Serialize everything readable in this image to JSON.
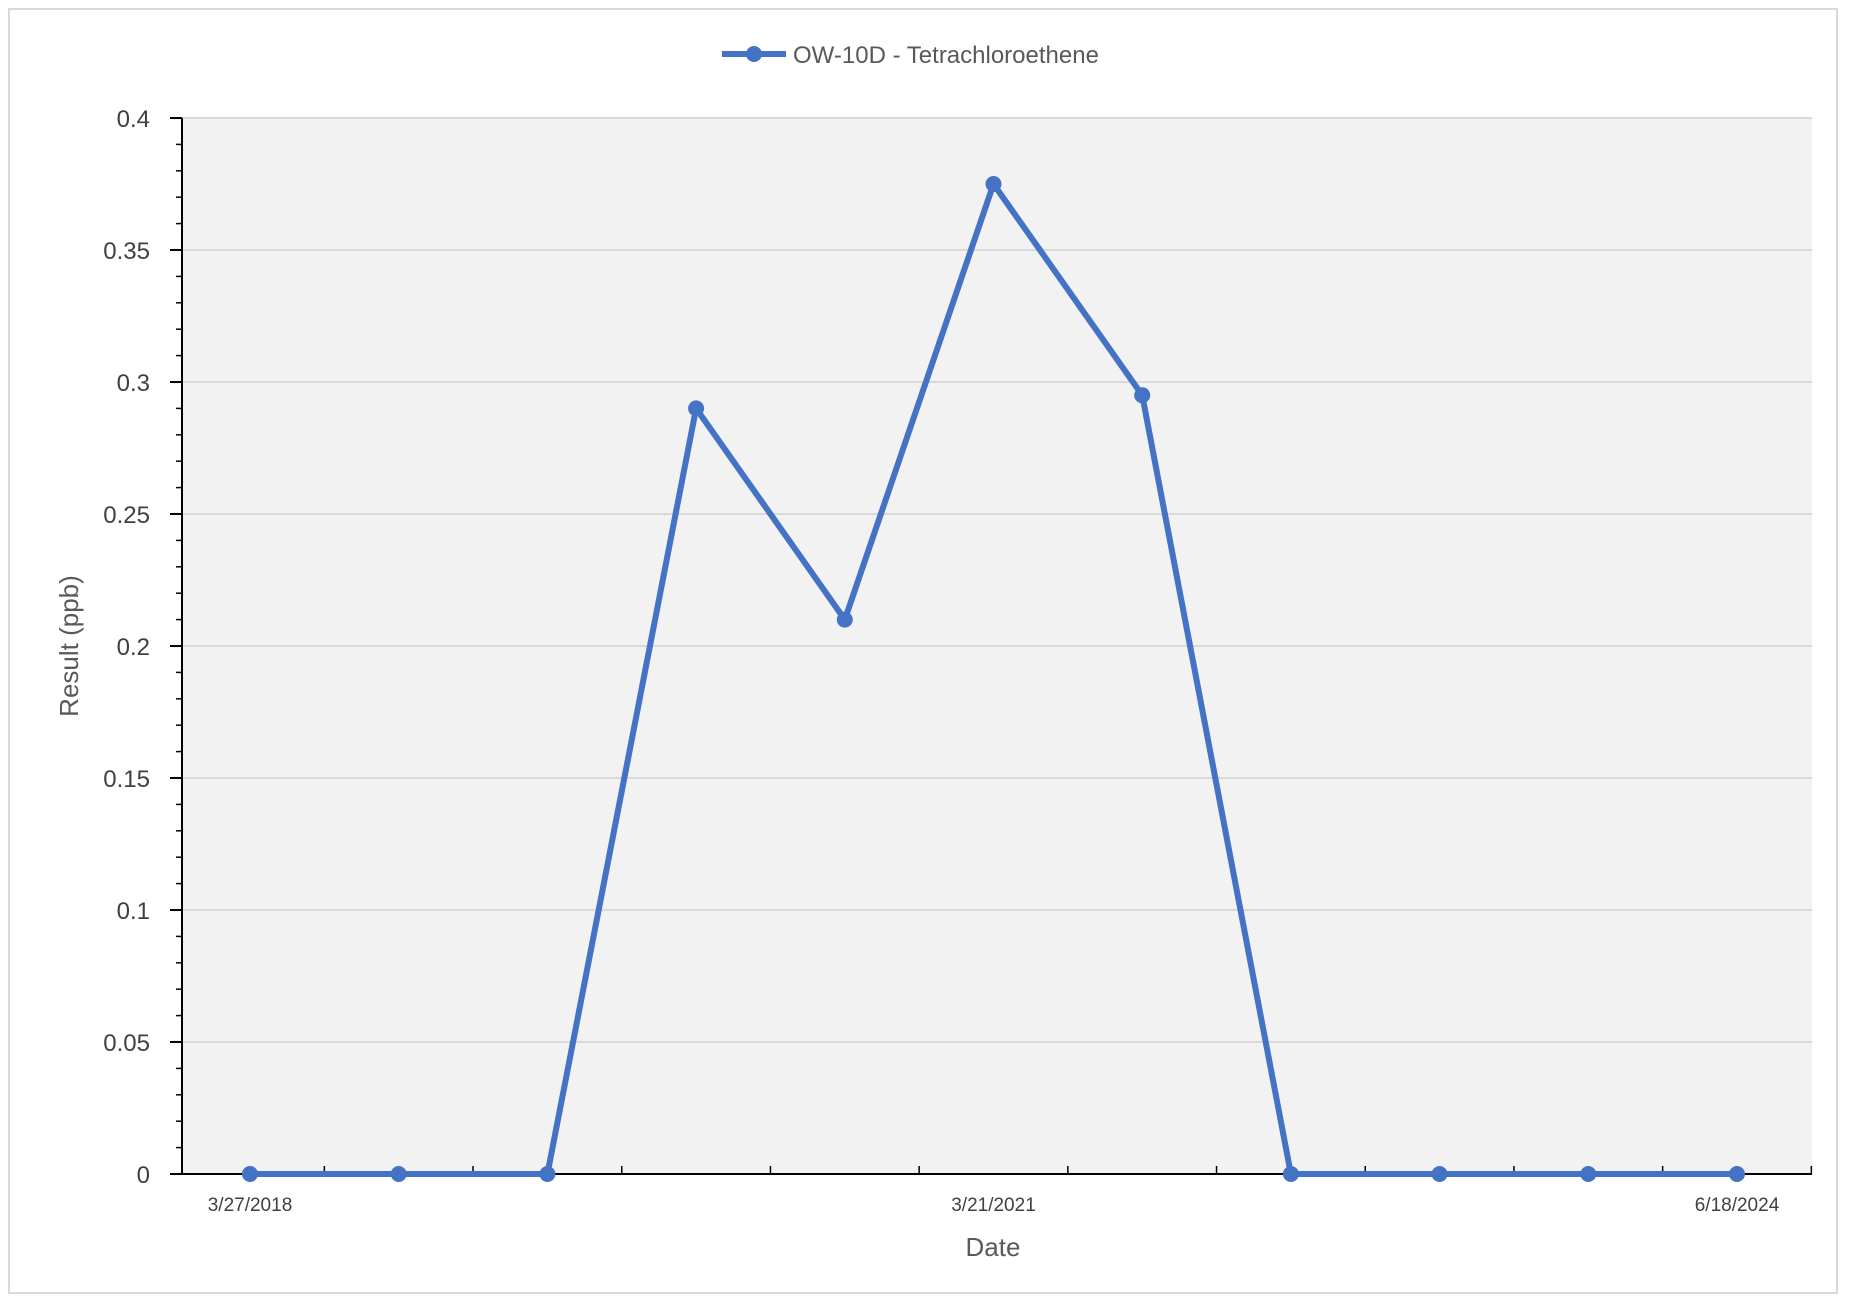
{
  "chart_data": {
    "type": "line",
    "title": "",
    "xlabel": "Date",
    "ylabel": "Result (ppb)",
    "ylim": [
      0,
      0.4
    ],
    "yticks": [
      0,
      0.05,
      0.1,
      0.15,
      0.2,
      0.25,
      0.3,
      0.35,
      0.4
    ],
    "ytick_labels": [
      "0",
      "0.05",
      "0.1",
      "0.15",
      "0.2",
      "0.25",
      "0.3",
      "0.35",
      "0.4"
    ],
    "xtick_labels": [
      "3/27/2018",
      "3/21/2021",
      "6/18/2024"
    ],
    "grid": true,
    "legend_position": "top-center",
    "series": [
      {
        "name": "OW-10D - Tetrachloroethene",
        "color": "#4472c4",
        "marker": "circle",
        "values": [
          0,
          0,
          0,
          0.29,
          0.21,
          0.375,
          0.295,
          0,
          0,
          0,
          0
        ]
      }
    ]
  }
}
